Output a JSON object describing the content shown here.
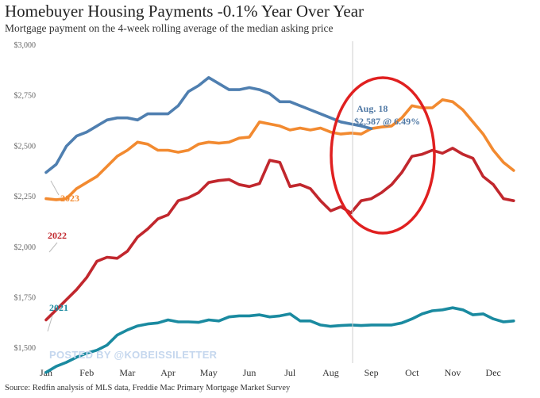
{
  "header": {
    "title": "Homebuyer Housing Payments -0.1% Year Over Year",
    "subtitle": "Mortgage payment on the 4-week rolling average of the median asking price"
  },
  "footer": {
    "source": "Source: Redfin analysis of MLS data, Freddie Mac Primary Mortgage Market Survey",
    "watermark": "POSTED BY @KOBEISSILETTER"
  },
  "annotation": {
    "line1": "Aug. 18",
    "line2": "$2,587 @ 6.49%",
    "circle_color": "#e02020"
  },
  "chart_data": {
    "type": "line",
    "title": "Homebuyer Housing Payments -0.1% Year Over Year",
    "subtitle": "Mortgage payment on the 4-week rolling average of the median asking price",
    "x_labels": [
      "Jan",
      "Feb",
      "Mar",
      "Apr",
      "May",
      "Jun",
      "Jul",
      "Aug",
      "Sep",
      "Oct",
      "Nov",
      "Dec"
    ],
    "y_ticks": [
      1500,
      1750,
      2000,
      2250,
      2500,
      2750,
      3000
    ],
    "y_tick_labels": [
      "$1,500",
      "$1,750",
      "$2,000",
      "$2,250",
      "$2,500",
      "$2,750",
      "$3,000"
    ],
    "ylim": [
      1430,
      3000
    ],
    "grid": false,
    "series": [
      {
        "name": "2021",
        "color": "#1a8aa0",
        "x": [
          0.0,
          0.25,
          0.5,
          0.75,
          1.0,
          1.25,
          1.5,
          1.75,
          2.0,
          2.25,
          2.5,
          2.75,
          3.0,
          3.25,
          3.5,
          3.75,
          4.0,
          4.25,
          4.5,
          4.75,
          5.0,
          5.25,
          5.5,
          5.75,
          6.0,
          6.25,
          6.5,
          6.75,
          7.0,
          7.25,
          7.5,
          7.75,
          8.0,
          8.25,
          8.5,
          8.75,
          9.0,
          9.25,
          9.5,
          9.75,
          10.0,
          10.25,
          10.5,
          10.75,
          11.0,
          11.25,
          11.5
        ],
        "values": [
          1380,
          1410,
          1430,
          1455,
          1475,
          1490,
          1515,
          1565,
          1590,
          1610,
          1620,
          1625,
          1640,
          1630,
          1630,
          1628,
          1640,
          1635,
          1655,
          1660,
          1660,
          1665,
          1655,
          1660,
          1670,
          1635,
          1635,
          1615,
          1608,
          1612,
          1615,
          1612,
          1615,
          1615,
          1615,
          1625,
          1645,
          1670,
          1685,
          1690,
          1700,
          1690,
          1665,
          1670,
          1645,
          1630,
          1635
        ]
      },
      {
        "name": "2022",
        "color": "#c1272d",
        "x": [
          0.0,
          0.25,
          0.5,
          0.75,
          1.0,
          1.25,
          1.5,
          1.75,
          2.0,
          2.25,
          2.5,
          2.75,
          3.0,
          3.25,
          3.5,
          3.75,
          4.0,
          4.25,
          4.5,
          4.75,
          5.0,
          5.25,
          5.5,
          5.75,
          6.0,
          6.25,
          6.5,
          6.75,
          7.0,
          7.25,
          7.5,
          7.75,
          8.0,
          8.25,
          8.5,
          8.75,
          9.0,
          9.25,
          9.5,
          9.75,
          10.0,
          10.25,
          10.5,
          10.75,
          11.0,
          11.25,
          11.5
        ],
        "values": [
          1640,
          1690,
          1740,
          1790,
          1850,
          1930,
          1950,
          1945,
          1980,
          2050,
          2090,
          2140,
          2160,
          2230,
          2245,
          2270,
          2320,
          2330,
          2335,
          2310,
          2300,
          2315,
          2430,
          2420,
          2300,
          2310,
          2290,
          2230,
          2180,
          2200,
          2170,
          2230,
          2240,
          2270,
          2310,
          2370,
          2450,
          2460,
          2480,
          2465,
          2490,
          2460,
          2440,
          2350,
          2310,
          2240,
          2230
        ]
      },
      {
        "name": "2023",
        "color": "#f28a30",
        "x": [
          0.0,
          0.25,
          0.5,
          0.75,
          1.0,
          1.25,
          1.5,
          1.75,
          2.0,
          2.25,
          2.5,
          2.75,
          3.0,
          3.25,
          3.5,
          3.75,
          4.0,
          4.25,
          4.5,
          4.75,
          5.0,
          5.25,
          5.5,
          5.75,
          6.0,
          6.25,
          6.5,
          6.75,
          7.0,
          7.25,
          7.5,
          7.75,
          8.0,
          8.25,
          8.5,
          8.75,
          9.0,
          9.25,
          9.5,
          9.75,
          10.0,
          10.25,
          10.5,
          10.75,
          11.0,
          11.25,
          11.5
        ],
        "values": [
          2240,
          2235,
          2240,
          2290,
          2320,
          2350,
          2400,
          2450,
          2480,
          2520,
          2510,
          2480,
          2480,
          2470,
          2480,
          2510,
          2520,
          2515,
          2520,
          2540,
          2545,
          2620,
          2610,
          2600,
          2580,
          2590,
          2580,
          2590,
          2570,
          2560,
          2565,
          2560,
          2587,
          2595,
          2600,
          2640,
          2700,
          2690,
          2690,
          2730,
          2720,
          2680,
          2620,
          2560,
          2480,
          2420,
          2380
        ]
      },
      {
        "name": "",
        "color": "#4f7fb0",
        "x": [
          0.0,
          0.25,
          0.5,
          0.75,
          1.0,
          1.25,
          1.5,
          1.75,
          2.0,
          2.25,
          2.5,
          2.75,
          3.0,
          3.25,
          3.5,
          3.75,
          4.0,
          4.25,
          4.5,
          4.75,
          5.0,
          5.25,
          5.5,
          5.75,
          6.0,
          6.25,
          6.5,
          6.75,
          7.0,
          7.25,
          7.5,
          7.75,
          8.0
        ],
        "values": [
          2370,
          2410,
          2500,
          2550,
          2570,
          2600,
          2630,
          2640,
          2640,
          2630,
          2660,
          2660,
          2660,
          2700,
          2770,
          2800,
          2840,
          2810,
          2780,
          2780,
          2790,
          2780,
          2760,
          2720,
          2720,
          2700,
          2680,
          2660,
          2640,
          2620,
          2610,
          2600,
          2587
        ]
      }
    ]
  }
}
